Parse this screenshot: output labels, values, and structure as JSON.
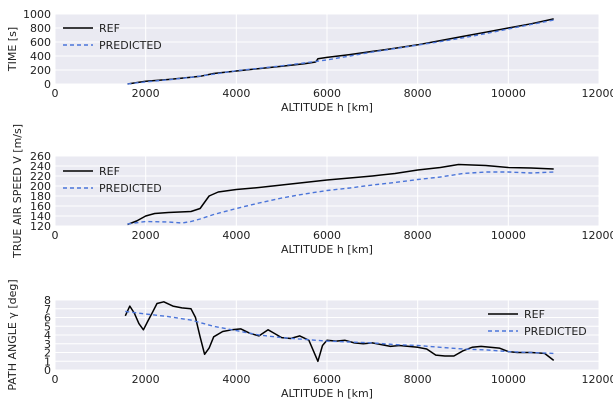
{
  "chart_data": [
    {
      "type": "line",
      "xlabel": "ALTITUDE h [km]",
      "ylabel": "TIME [s]",
      "xlim": [
        0,
        12000
      ],
      "ylim": [
        0,
        1000
      ],
      "xticks": [
        0,
        2000,
        4000,
        6000,
        8000,
        10000,
        12000
      ],
      "yticks": [
        0,
        200,
        400,
        600,
        800,
        1000
      ],
      "grid": true,
      "legend": "top-left",
      "series": [
        {
          "name": "REF",
          "color": "#000000",
          "style": "solid",
          "x": [
            1600,
            2000,
            2500,
            3000,
            3200,
            3500,
            4000,
            4500,
            5000,
            5500,
            5750,
            5800,
            6000,
            6500,
            7000,
            7500,
            8000,
            8500,
            9000,
            9500,
            10000,
            10500,
            11000
          ],
          "y": [
            0,
            40,
            65,
            95,
            110,
            150,
            185,
            220,
            255,
            290,
            315,
            360,
            380,
            420,
            465,
            510,
            560,
            620,
            680,
            740,
            800,
            860,
            930
          ]
        },
        {
          "name": "PREDICTED",
          "color": "#4a74d9",
          "style": "dashed",
          "x": [
            1600,
            2000,
            2500,
            3000,
            3500,
            4000,
            4500,
            5000,
            5500,
            6000,
            6500,
            7000,
            7500,
            8000,
            8500,
            9000,
            9500,
            10000,
            10500,
            11000
          ],
          "y": [
            0,
            30,
            60,
            95,
            140,
            190,
            225,
            260,
            300,
            345,
            400,
            455,
            505,
            555,
            605,
            660,
            720,
            785,
            850,
            915
          ]
        }
      ]
    },
    {
      "type": "line",
      "xlabel": "ALTITUDE h [km]",
      "ylabel": "TRUE AIR SPEED V [m/s]",
      "xlim": [
        0,
        12000
      ],
      "ylim": [
        120,
        260
      ],
      "xticks": [
        0,
        2000,
        4000,
        6000,
        8000,
        10000,
        12000
      ],
      "yticks": [
        120,
        140,
        160,
        180,
        200,
        220,
        240,
        260
      ],
      "grid": true,
      "legend": "top-left",
      "series": [
        {
          "name": "REF",
          "color": "#000000",
          "style": "solid",
          "x": [
            1600,
            1800,
            2000,
            2200,
            2500,
            3000,
            3200,
            3400,
            3600,
            4000,
            4500,
            5000,
            5500,
            6000,
            6500,
            7000,
            7500,
            8000,
            8500,
            8900,
            9500,
            10000,
            10500,
            11000
          ],
          "y": [
            123,
            130,
            140,
            145,
            147,
            149,
            155,
            180,
            188,
            193,
            197,
            202,
            207,
            212,
            216,
            220,
            225,
            232,
            237,
            243,
            241,
            237,
            236,
            234
          ]
        },
        {
          "name": "PREDICTED",
          "color": "#4a74d9",
          "style": "dashed",
          "x": [
            1600,
            2000,
            2500,
            2800,
            3000,
            3200,
            3500,
            4000,
            4500,
            5000,
            5500,
            6000,
            6500,
            7000,
            7500,
            8000,
            8500,
            9000,
            9500,
            10000,
            10500,
            11000
          ],
          "y": [
            124,
            129,
            128,
            126,
            129,
            134,
            143,
            155,
            166,
            176,
            184,
            191,
            196,
            202,
            207,
            213,
            218,
            225,
            228,
            228,
            226,
            228
          ]
        }
      ]
    },
    {
      "type": "line",
      "xlabel": "ALTITUDE h [km]",
      "ylabel": "PATH ANGLE γ [deg]",
      "xlim": [
        0,
        12000
      ],
      "ylim": [
        0,
        8
      ],
      "xticks": [
        0,
        2000,
        4000,
        6000,
        8000,
        10000,
        12000
      ],
      "yticks": [
        0,
        1,
        2,
        3,
        4,
        5,
        6,
        7,
        8
      ],
      "grid": true,
      "legend": "right",
      "series": [
        {
          "name": "REF",
          "color": "#000000",
          "style": "solid",
          "x": [
            1550,
            1650,
            1750,
            1850,
            1950,
            2050,
            2150,
            2250,
            2400,
            2600,
            2800,
            3000,
            3100,
            3200,
            3300,
            3400,
            3500,
            3700,
            3900,
            4100,
            4300,
            4500,
            4700,
            4800,
            5000,
            5200,
            5400,
            5600,
            5700,
            5800,
            5900,
            6000,
            6200,
            6400,
            6600,
            6800,
            7000,
            7200,
            7400,
            7600,
            7800,
            8000,
            8200,
            8400,
            8600,
            8800,
            9000,
            9200,
            9400,
            9600,
            9800,
            10000,
            10200,
            10500,
            10800,
            11000
          ],
          "y": [
            6.2,
            7.3,
            6.5,
            5.3,
            4.6,
            5.6,
            6.6,
            7.6,
            7.8,
            7.3,
            7.1,
            7.0,
            6.0,
            3.8,
            1.8,
            2.5,
            3.8,
            4.4,
            4.6,
            4.7,
            4.2,
            3.9,
            4.6,
            4.3,
            3.7,
            3.6,
            3.9,
            3.4,
            2.2,
            1.0,
            2.8,
            3.4,
            3.3,
            3.4,
            3.1,
            3.0,
            3.1,
            2.9,
            2.7,
            2.8,
            2.7,
            2.6,
            2.4,
            1.7,
            1.6,
            1.6,
            2.2,
            2.6,
            2.7,
            2.6,
            2.5,
            2.1,
            2.0,
            2.0,
            1.9,
            1.1
          ]
        },
        {
          "name": "PREDICTED",
          "color": "#4a74d9",
          "style": "dashed",
          "x": [
            1550,
            2000,
            2500,
            3000,
            3500,
            4000,
            4500,
            5000,
            5500,
            6000,
            6500,
            7000,
            7500,
            8000,
            8500,
            9000,
            9500,
            10000,
            10500,
            11000
          ],
          "y": [
            6.7,
            6.4,
            6.1,
            5.7,
            5.0,
            4.5,
            4.0,
            3.7,
            3.5,
            3.3,
            3.2,
            3.1,
            2.9,
            2.8,
            2.6,
            2.4,
            2.3,
            2.1,
            2.0,
            1.9
          ]
        }
      ]
    }
  ]
}
